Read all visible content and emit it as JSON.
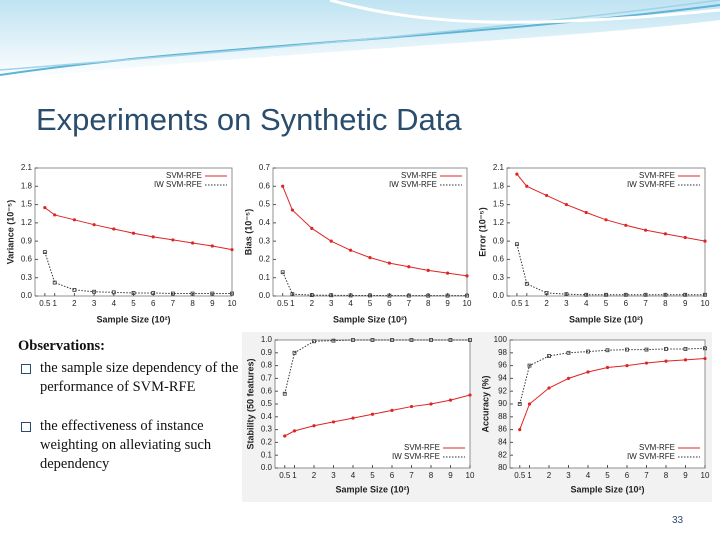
{
  "slide": {
    "title": "Experiments on Synthetic Data",
    "observations": "Observations:",
    "bullets": [
      "the sample size dependency of the performance of SVM-RFE",
      "the effectiveness of instance weighting on alleviating such dependency"
    ],
    "page": "33"
  },
  "chart_data": [
    {
      "type": "line",
      "ylabel": "Variance (10⁻⁵)",
      "xlabel": "Sample Size (10²)",
      "legend": "upper right",
      "x": [
        0.5,
        1,
        2,
        3,
        4,
        5,
        6,
        7,
        8,
        9,
        10
      ],
      "xlim": [
        0,
        10
      ],
      "xticks": [
        0.5,
        1,
        2,
        3,
        4,
        5,
        6,
        7,
        8,
        9,
        10
      ],
      "ylim": [
        0,
        2.1
      ],
      "yticks": [
        {
          "value": 0,
          "label": "0.0"
        },
        0.3,
        0.6,
        0.9,
        1.2,
        1.5,
        1.8,
        2.1
      ],
      "series": [
        {
          "name": "SVM-RFE",
          "color": "#e02424",
          "values": [
            1.45,
            1.33,
            1.25,
            1.17,
            1.1,
            1.03,
            0.97,
            0.92,
            0.87,
            0.82,
            0.76
          ]
        },
        {
          "name": "IW SVM-RFE",
          "color": "#333333",
          "values": [
            0.72,
            0.22,
            0.1,
            0.07,
            0.06,
            0.05,
            0.05,
            0.04,
            0.04,
            0.04,
            0.04
          ]
        }
      ]
    },
    {
      "type": "line",
      "ylabel": "Bias (10⁻⁵)",
      "xlabel": "Sample Size (10²)",
      "legend": "upper right",
      "x": [
        0.5,
        1,
        2,
        3,
        4,
        5,
        6,
        7,
        8,
        9,
        10
      ],
      "xlim": [
        0,
        10
      ],
      "xticks": [
        0.5,
        1,
        2,
        3,
        4,
        5,
        6,
        7,
        8,
        9,
        10
      ],
      "ylim": [
        0,
        0.7
      ],
      "yticks": [
        {
          "value": 0,
          "label": "0.0"
        },
        0.1,
        0.2,
        0.3,
        0.4,
        0.5,
        0.6,
        0.7
      ],
      "series": [
        {
          "name": "SVM-RFE",
          "color": "#e02424",
          "values": [
            0.6,
            0.47,
            0.37,
            0.3,
            0.25,
            0.21,
            0.18,
            0.16,
            0.14,
            0.125,
            0.11
          ]
        },
        {
          "name": "IW SVM-RFE",
          "color": "#333333",
          "values": [
            0.13,
            0.01,
            0.005,
            0.004,
            0.003,
            0.003,
            0.002,
            0.002,
            0.002,
            0.002,
            0.002
          ]
        }
      ]
    },
    {
      "type": "line",
      "ylabel": "Error (10⁻⁵)",
      "xlabel": "Sample Size (10²)",
      "legend": "upper right",
      "x": [
        0.5,
        1,
        2,
        3,
        4,
        5,
        6,
        7,
        8,
        9,
        10
      ],
      "xlim": [
        0,
        10
      ],
      "xticks": [
        0.5,
        1,
        2,
        3,
        4,
        5,
        6,
        7,
        8,
        9,
        10
      ],
      "ylim": [
        0,
        2.1
      ],
      "yticks": [
        {
          "value": 0,
          "label": "0.0"
        },
        0.3,
        0.6,
        0.9,
        1.2,
        1.5,
        1.8,
        2.1
      ],
      "series": [
        {
          "name": "SVM-RFE",
          "color": "#e02424",
          "values": [
            2.0,
            1.8,
            1.65,
            1.5,
            1.37,
            1.25,
            1.16,
            1.08,
            1.02,
            0.96,
            0.9
          ]
        },
        {
          "name": "IW SVM-RFE",
          "color": "#333333",
          "values": [
            0.85,
            0.2,
            0.05,
            0.03,
            0.02,
            0.02,
            0.02,
            0.02,
            0.02,
            0.02,
            0.02
          ]
        }
      ]
    },
    {
      "type": "line",
      "ylabel": "Stability (50 features)",
      "xlabel": "Sample Size (10²)",
      "legend": "lower right",
      "x": [
        0.5,
        1,
        2,
        3,
        4,
        5,
        6,
        7,
        8,
        9,
        10
      ],
      "xlim": [
        0,
        10
      ],
      "xticks": [
        0.5,
        1,
        2,
        3,
        4,
        5,
        6,
        7,
        8,
        9,
        10
      ],
      "ylim": [
        0,
        1
      ],
      "yticks": [
        {
          "value": 0,
          "label": "0.0"
        },
        0.1,
        0.2,
        0.3,
        0.4,
        0.5,
        0.6,
        0.7,
        0.8,
        0.9,
        {
          "value": 1,
          "label": "1.0"
        }
      ],
      "series": [
        {
          "name": "SVM-RFE",
          "color": "#e02424",
          "values": [
            0.25,
            0.29,
            0.33,
            0.36,
            0.39,
            0.42,
            0.45,
            0.48,
            0.5,
            0.53,
            0.57
          ]
        },
        {
          "name": "IW SVM-RFE",
          "color": "#333333",
          "values": [
            0.58,
            0.9,
            0.99,
            0.995,
            1,
            1,
            1,
            1,
            1,
            1,
            1
          ]
        }
      ]
    },
    {
      "type": "line",
      "ylabel": "Accuracy (%)",
      "xlabel": "Sample Size (10²)",
      "legend": "lower right",
      "x": [
        0.5,
        1,
        2,
        3,
        4,
        5,
        6,
        7,
        8,
        9,
        10
      ],
      "xlim": [
        0,
        10
      ],
      "xticks": [
        0.5,
        1,
        2,
        3,
        4,
        5,
        6,
        7,
        8,
        9,
        10
      ],
      "ylim": [
        80,
        100
      ],
      "yticks": [
        80,
        82,
        84,
        86,
        88,
        90,
        92,
        94,
        96,
        98,
        100
      ],
      "series": [
        {
          "name": "SVM-RFE",
          "color": "#e02424",
          "values": [
            86,
            90,
            92.5,
            94,
            95,
            95.7,
            96,
            96.4,
            96.7,
            96.9,
            97.1
          ]
        },
        {
          "name": "IW SVM-RFE",
          "color": "#333333",
          "values": [
            90,
            96,
            97.5,
            98,
            98.2,
            98.4,
            98.5,
            98.5,
            98.6,
            98.6,
            98.7
          ]
        }
      ]
    }
  ]
}
